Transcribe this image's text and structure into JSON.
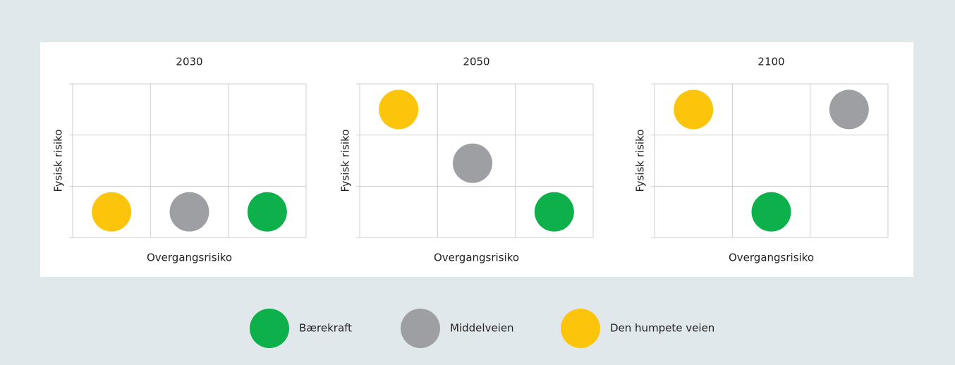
{
  "chart_data": [
    {
      "type": "scatter",
      "title": "2030",
      "xlabel": "Overgangsrisiko",
      "ylabel": "Fysisk risiko",
      "xlim": [
        0,
        3
      ],
      "ylim": [
        0,
        3
      ],
      "xticks": [
        0,
        1,
        2,
        3
      ],
      "yticks": [
        0,
        1,
        2,
        3
      ],
      "series": [
        {
          "x": [
            2.5
          ],
          "values": [
            0.5
          ]
        },
        {
          "x": [
            1.5
          ],
          "values": [
            0.5
          ]
        },
        {
          "x": [
            0.5
          ],
          "values": [
            0.5
          ]
        }
      ]
    },
    {
      "type": "scatter",
      "title": "2050",
      "xlabel": "Overgangsrisiko",
      "ylabel": "Fysisk risiko",
      "xlim": [
        0,
        3
      ],
      "ylim": [
        0,
        3
      ],
      "xticks": [
        0,
        1,
        2,
        3
      ],
      "yticks": [
        0,
        1,
        2,
        3
      ],
      "series": [
        {
          "x": [
            2.5
          ],
          "values": [
            0.5
          ]
        },
        {
          "x": [
            1.45
          ],
          "values": [
            1.45
          ]
        },
        {
          "x": [
            0.5
          ],
          "values": [
            2.5
          ]
        }
      ]
    },
    {
      "type": "scatter",
      "title": "2100",
      "xlabel": "Overgangsrisiko",
      "ylabel": "Fysisk risiko",
      "xlim": [
        0,
        3
      ],
      "ylim": [
        0,
        3
      ],
      "xticks": [
        0,
        1,
        2,
        3
      ],
      "yticks": [
        0,
        1,
        2,
        3
      ],
      "series": [
        {
          "x": [
            1.5
          ],
          "values": [
            0.5
          ]
        },
        {
          "x": [
            2.5
          ],
          "values": [
            2.5
          ]
        },
        {
          "x": [
            0.5
          ],
          "values": [
            2.5
          ]
        }
      ]
    }
  ],
  "legend": {
    "items": [
      {
        "name": "Bærekraft",
        "color": "#0db04b"
      },
      {
        "name": "Middelveien",
        "color": "#9d9fa2"
      },
      {
        "name": "Den humpete veien",
        "color": "#fdc40c"
      }
    ]
  }
}
